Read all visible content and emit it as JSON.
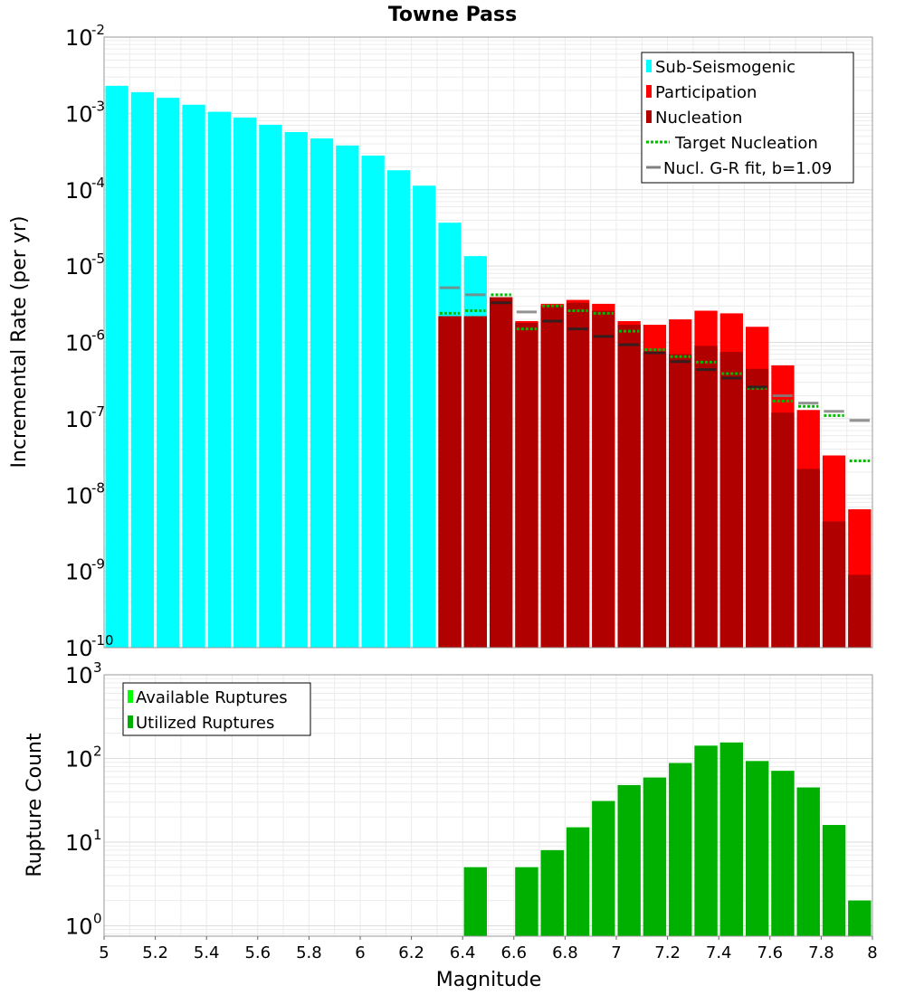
{
  "chart_data": [
    {
      "type": "bar",
      "title": "Towne Pass",
      "xlabel": "",
      "ylabel": "Incremental Rate (per yr)",
      "yscale": "log",
      "xlim": [
        5,
        8
      ],
      "ylim": [
        1e-10,
        0.01
      ],
      "ytick_exponents": [
        "-10",
        "-9",
        "-8",
        "-7",
        "-6",
        "-5",
        "-4",
        "-3",
        "-2"
      ],
      "legend_position": "top-right",
      "grid": true,
      "bin_width": 0.1,
      "series": [
        {
          "name": "Sub-Seismogenic",
          "color": "#00ffff",
          "x": [
            5.05,
            5.15,
            5.25,
            5.35,
            5.45,
            5.55,
            5.65,
            5.75,
            5.85,
            5.95,
            6.05,
            6.15,
            6.25,
            6.35,
            6.45
          ],
          "values": [
            0.0023,
            0.0019,
            0.0016,
            0.0013,
            0.00105,
            0.00088,
            0.00071,
            0.00057,
            0.00047,
            0.00038,
            0.00028,
            0.00018,
            0.000113,
            3.7e-05,
            1.35e-05
          ]
        },
        {
          "name": "Participation",
          "color": "#ff0000",
          "x": [
            6.35,
            6.45,
            6.55,
            6.65,
            6.75,
            6.85,
            6.95,
            7.05,
            7.15,
            7.25,
            7.35,
            7.45,
            7.55,
            7.65,
            7.75,
            7.85,
            7.95
          ],
          "values": [
            2.2e-06,
            2.2e-06,
            3.9e-06,
            1.9e-06,
            3.2e-06,
            3.6e-06,
            3.2e-06,
            1.9e-06,
            1.7e-06,
            2e-06,
            2.6e-06,
            2.4e-06,
            1.6e-06,
            5e-07,
            1.3e-07,
            3.3e-08,
            6.5e-09
          ]
        },
        {
          "name": "Nucleation",
          "color": "#b00000",
          "x": [
            6.35,
            6.45,
            6.55,
            6.65,
            6.75,
            6.85,
            6.95,
            7.05,
            7.15,
            7.25,
            7.35,
            7.45,
            7.55,
            7.65,
            7.75,
            7.85,
            7.95
          ],
          "values": [
            2.2e-06,
            2.2e-06,
            3.9e-06,
            1.8e-06,
            3e-06,
            3.3e-06,
            2.6e-06,
            1.7e-06,
            7.5e-07,
            7e-07,
            9e-07,
            7.5e-07,
            4.5e-07,
            1.2e-07,
            2.2e-08,
            4.5e-09,
            9e-10
          ]
        },
        {
          "name": "Target Nucleation",
          "color": "#00bb00",
          "style": "dotted",
          "x": [
            6.35,
            6.45,
            6.55,
            6.65,
            6.75,
            6.85,
            6.95,
            7.05,
            7.15,
            7.25,
            7.35,
            7.45,
            7.55,
            7.65,
            7.75,
            7.85,
            7.95
          ],
          "values": [
            2.4e-06,
            2.6e-06,
            4.2e-06,
            1.5e-06,
            3e-06,
            2.6e-06,
            2.4e-06,
            1.4e-06,
            8e-07,
            6.5e-07,
            5.5e-07,
            3.9e-07,
            2.5e-07,
            1.7e-07,
            1.45e-07,
            1.1e-07,
            2.8e-08
          ]
        },
        {
          "name": "Nucl. G-R fit, b=1.09",
          "color": "#808080",
          "style": "dash",
          "x": [
            6.35,
            6.45,
            6.55,
            6.65,
            6.75,
            6.85,
            6.95,
            7.05,
            7.15,
            7.25,
            7.35,
            7.45,
            7.55,
            7.65,
            7.75,
            7.85,
            7.95
          ],
          "values": [
            5.2e-06,
            4.2e-06,
            3.3e-06,
            2.5e-06,
            1.9e-06,
            1.5e-06,
            1.2e-06,
            9.3e-07,
            7.3e-07,
            5.6e-07,
            4.4e-07,
            3.4e-07,
            2.6e-07,
            2e-07,
            1.6e-07,
            1.25e-07,
            9.5e-08
          ]
        }
      ]
    },
    {
      "type": "bar",
      "title": "",
      "xlabel": "Magnitude",
      "ylabel": "Rupture Count",
      "yscale": "log",
      "xlim": [
        5,
        8
      ],
      "ylim": [
        0.75,
        1000
      ],
      "ytick_exponents": [
        "0",
        "1",
        "2",
        "3"
      ],
      "xticks": [
        "5",
        "5.2",
        "5.4",
        "5.6",
        "5.8",
        "6",
        "6.2",
        "6.4",
        "6.6",
        "6.8",
        "7",
        "7.2",
        "7.4",
        "7.6",
        "7.8",
        "8"
      ],
      "legend_position": "top-left",
      "grid": true,
      "bin_width": 0.1,
      "series": [
        {
          "name": "Available Ruptures",
          "color": "#00ff00",
          "x": [
            6.45,
            6.65,
            6.75,
            6.85,
            6.95,
            7.05,
            7.15,
            7.25,
            7.35,
            7.45,
            7.55,
            7.65,
            7.75,
            7.85,
            7.95
          ],
          "values": [
            5,
            5,
            8,
            15,
            31,
            48,
            59,
            88,
            142,
            155,
            93,
            71,
            45,
            16,
            2
          ]
        },
        {
          "name": "Utilized Ruptures",
          "color": "#00b000",
          "x": [
            6.45,
            6.65,
            6.75,
            6.85,
            6.95,
            7.05,
            7.15,
            7.25,
            7.35,
            7.45,
            7.55,
            7.65,
            7.75,
            7.85,
            7.95
          ],
          "values": [
            5,
            5,
            8,
            15,
            31,
            48,
            59,
            88,
            142,
            155,
            93,
            71,
            45,
            16,
            2
          ]
        }
      ]
    }
  ]
}
